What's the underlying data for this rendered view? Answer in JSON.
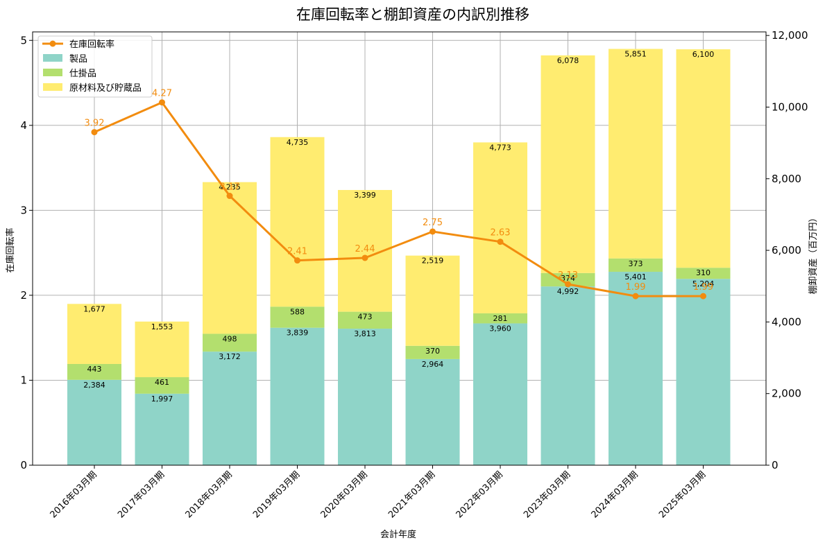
{
  "chart_data": {
    "type": "bar",
    "title": "在庫回転率と棚卸資産の内訳別推移",
    "xlabel": "会計年度",
    "ylabel_left": "在庫回転率",
    "ylabel_right": "棚卸資産（百万円）",
    "categories": [
      "2016年03月期",
      "2017年03月期",
      "2018年03月期",
      "2019年03月期",
      "2020年03月期",
      "2021年03月期",
      "2022年03月期",
      "2023年03月期",
      "2024年03月期",
      "2025年03月期"
    ],
    "series": [
      {
        "name": "製品",
        "axis": "right",
        "color": "#8fd4c8",
        "values": [
          2384,
          1997,
          3172,
          3839,
          3813,
          2964,
          3960,
          4992,
          5401,
          5204
        ],
        "labels": [
          "2,384",
          "1,997",
          "3,172",
          "3,839",
          "3,813",
          "2,964",
          "3,960",
          "4,992",
          "5,401",
          "5,204"
        ]
      },
      {
        "name": "仕掛品",
        "axis": "right",
        "color": "#b3df6e",
        "values": [
          443,
          461,
          498,
          588,
          473,
          370,
          281,
          374,
          373,
          310
        ],
        "labels": [
          "443",
          "461",
          "498",
          "588",
          "473",
          "370",
          "281",
          "374",
          "373",
          "310"
        ]
      },
      {
        "name": "原材料及び貯蔵品",
        "axis": "right",
        "color": "#ffec70",
        "values": [
          1677,
          1553,
          4235,
          4735,
          3399,
          2519,
          4773,
          6078,
          5851,
          6100
        ],
        "labels": [
          "1,677",
          "1,553",
          "4,235",
          "4,735",
          "3,399",
          "2,519",
          "4,773",
          "6,078",
          "5,851",
          "6,100"
        ]
      }
    ],
    "line": {
      "name": "在庫回転率",
      "axis": "left",
      "color": "#f28c0f",
      "values": [
        3.92,
        4.27,
        3.17,
        2.41,
        2.44,
        2.75,
        2.63,
        2.13,
        1.99,
        1.99
      ],
      "labels": [
        "3.92",
        "4.27",
        "3.17",
        "2.41",
        "2.44",
        "2.75",
        "2.63",
        "2.13",
        "1.99",
        "1.99"
      ]
    },
    "ylim_left": [
      0,
      5.1
    ],
    "yticks_left": [
      0,
      1,
      2,
      3,
      4,
      5
    ],
    "ytick_labels_left": [
      "0",
      "1",
      "2",
      "3",
      "4",
      "5"
    ],
    "ylim_right": [
      0,
      12100
    ],
    "yticks_right": [
      0,
      2000,
      4000,
      6000,
      8000,
      10000,
      12000
    ],
    "ytick_labels_right": [
      "0",
      "2,000",
      "4,000",
      "6,000",
      "8,000",
      "10,000",
      "12,000"
    ],
    "legend": [
      "在庫回転率",
      "製品",
      "仕掛品",
      "原材料及び貯蔵品"
    ],
    "legend_position": "top-left",
    "grid": true
  }
}
